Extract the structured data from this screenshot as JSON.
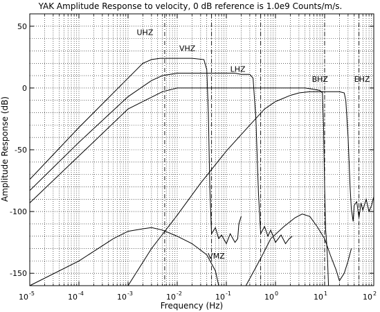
{
  "chart_data": {
    "type": "line",
    "title": "YAK Amplitude Response to velocity, 0 dB reference is 1.0e9 Counts/m/s.",
    "xlabel": "Frequency (Hz)",
    "ylabel": "Amplitude Response (dB)",
    "x_scale": "log",
    "xlim": [
      1e-05,
      100
    ],
    "ylim": [
      -160,
      60
    ],
    "grid": true,
    "x_tick_labels": [
      {
        "base": "10",
        "exp": "-5"
      },
      {
        "base": "10",
        "exp": "-4"
      },
      {
        "base": "10",
        "exp": "-3"
      },
      {
        "base": "10",
        "exp": "-2"
      },
      {
        "base": "10",
        "exp": "-1"
      },
      {
        "base": "10",
        "exp": "0"
      },
      {
        "base": "10",
        "exp": "1"
      },
      {
        "base": "10",
        "exp": "2"
      }
    ],
    "y_ticks": [
      "50",
      "0",
      "-50",
      "-100",
      "-150"
    ],
    "nyquist_markers": [
      0.00556,
      0.05,
      0.5,
      10,
      50
    ],
    "series": [
      {
        "name": "UHZ",
        "label_pos": [
          0.0015,
          43
        ],
        "points": [
          [
            1e-05,
            -74
          ],
          [
            0.0001,
            -32
          ],
          [
            0.001,
            8
          ],
          [
            0.002,
            20
          ],
          [
            0.003,
            23
          ],
          [
            0.0045,
            24
          ],
          [
            0.01,
            24
          ],
          [
            0.02,
            24
          ],
          [
            0.035,
            23
          ],
          [
            0.04,
            15
          ],
          [
            0.043,
            -20
          ],
          [
            0.046,
            -80
          ],
          [
            0.05,
            -118
          ],
          [
            0.06,
            -113
          ],
          [
            0.07,
            -122
          ],
          [
            0.08,
            -119
          ],
          [
            0.1,
            -126
          ],
          [
            0.12,
            -118
          ],
          [
            0.15,
            -125
          ],
          [
            0.17,
            -122
          ],
          [
            0.18,
            -110
          ],
          [
            0.2,
            -104
          ]
        ]
      },
      {
        "name": "VHZ",
        "label_pos": [
          0.011,
          30
        ],
        "points": [
          [
            1e-05,
            -83
          ],
          [
            0.0001,
            -44
          ],
          [
            0.001,
            -7
          ],
          [
            0.003,
            6
          ],
          [
            0.005,
            10
          ],
          [
            0.01,
            12
          ],
          [
            0.1,
            12
          ],
          [
            0.15,
            12
          ],
          [
            0.2,
            11
          ],
          [
            0.3,
            11
          ],
          [
            0.35,
            8
          ],
          [
            0.4,
            -25
          ],
          [
            0.45,
            -85
          ],
          [
            0.5,
            -118
          ],
          [
            0.6,
            -112
          ],
          [
            0.7,
            -120
          ],
          [
            0.8,
            -115
          ],
          [
            1,
            -125
          ],
          [
            1.3,
            -119
          ],
          [
            1.6,
            -126
          ],
          [
            1.9,
            -122
          ],
          [
            2.2,
            -120
          ]
        ]
      },
      {
        "name": "LHZ",
        "label_pos": [
          0.12,
          13
        ],
        "points": [
          [
            1e-05,
            -93
          ],
          [
            0.0001,
            -55
          ],
          [
            0.001,
            -17
          ],
          [
            0.005,
            -3
          ],
          [
            0.01,
            0
          ],
          [
            0.1,
            0
          ],
          [
            0.5,
            0
          ],
          [
            1,
            0
          ],
          [
            2,
            0
          ],
          [
            4,
            0
          ],
          [
            6,
            -1
          ],
          [
            8,
            -2
          ],
          [
            9,
            -4
          ],
          [
            9.5,
            -30
          ],
          [
            10,
            -80
          ],
          [
            10.5,
            -115
          ],
          [
            11,
            -125
          ],
          [
            11.5,
            -140
          ],
          [
            12,
            -160
          ]
        ]
      },
      {
        "name": "BHZ",
        "label_pos": [
          5.5,
          5
        ],
        "points": [
          [
            0.001,
            -160
          ],
          [
            0.003,
            -130
          ],
          [
            0.01,
            -103
          ],
          [
            0.03,
            -77
          ],
          [
            0.1,
            -51
          ],
          [
            0.3,
            -30
          ],
          [
            0.6,
            -17
          ],
          [
            1,
            -11
          ],
          [
            2,
            -6
          ],
          [
            3,
            -4
          ],
          [
            5,
            -3
          ],
          [
            10,
            -3
          ],
          [
            15,
            -3
          ],
          [
            20,
            -3
          ],
          [
            25,
            -4
          ],
          [
            27,
            -10
          ],
          [
            30,
            -40
          ],
          [
            33,
            -80
          ],
          [
            35,
            -98
          ],
          [
            38,
            -108
          ],
          [
            40,
            -95
          ],
          [
            45,
            -92
          ],
          [
            50,
            -105
          ],
          [
            55,
            -93
          ],
          [
            60,
            -99
          ],
          [
            70,
            -90
          ],
          [
            80,
            -100
          ],
          [
            90,
            -95
          ],
          [
            100,
            -88
          ]
        ]
      },
      {
        "name": "EHZ",
        "label_pos": [
          40,
          5
        ],
        "points": [
          [
            0.25,
            -160
          ],
          [
            0.5,
            -138
          ],
          [
            0.8,
            -122
          ],
          [
            1.5,
            -112
          ],
          [
            2.5,
            -105
          ],
          [
            3.5,
            -102
          ],
          [
            5,
            -104
          ],
          [
            7,
            -112
          ],
          [
            10,
            -122
          ],
          [
            13,
            -135
          ],
          [
            17,
            -147
          ],
          [
            20,
            -156
          ],
          [
            25,
            -150
          ],
          [
            30,
            -140
          ],
          [
            35,
            -130
          ]
        ]
      },
      {
        "name": "VMZ",
        "label_pos": [
          0.042,
          -138
        ],
        "points": [
          [
            1e-05,
            -160
          ],
          [
            0.0001,
            -140
          ],
          [
            0.0005,
            -122
          ],
          [
            0.001,
            -116
          ],
          [
            0.002,
            -114
          ],
          [
            0.003,
            -113
          ],
          [
            0.005,
            -115
          ],
          [
            0.01,
            -120
          ],
          [
            0.02,
            -126
          ],
          [
            0.04,
            -135
          ],
          [
            0.06,
            -148
          ],
          [
            0.07,
            -160
          ]
        ]
      }
    ]
  }
}
